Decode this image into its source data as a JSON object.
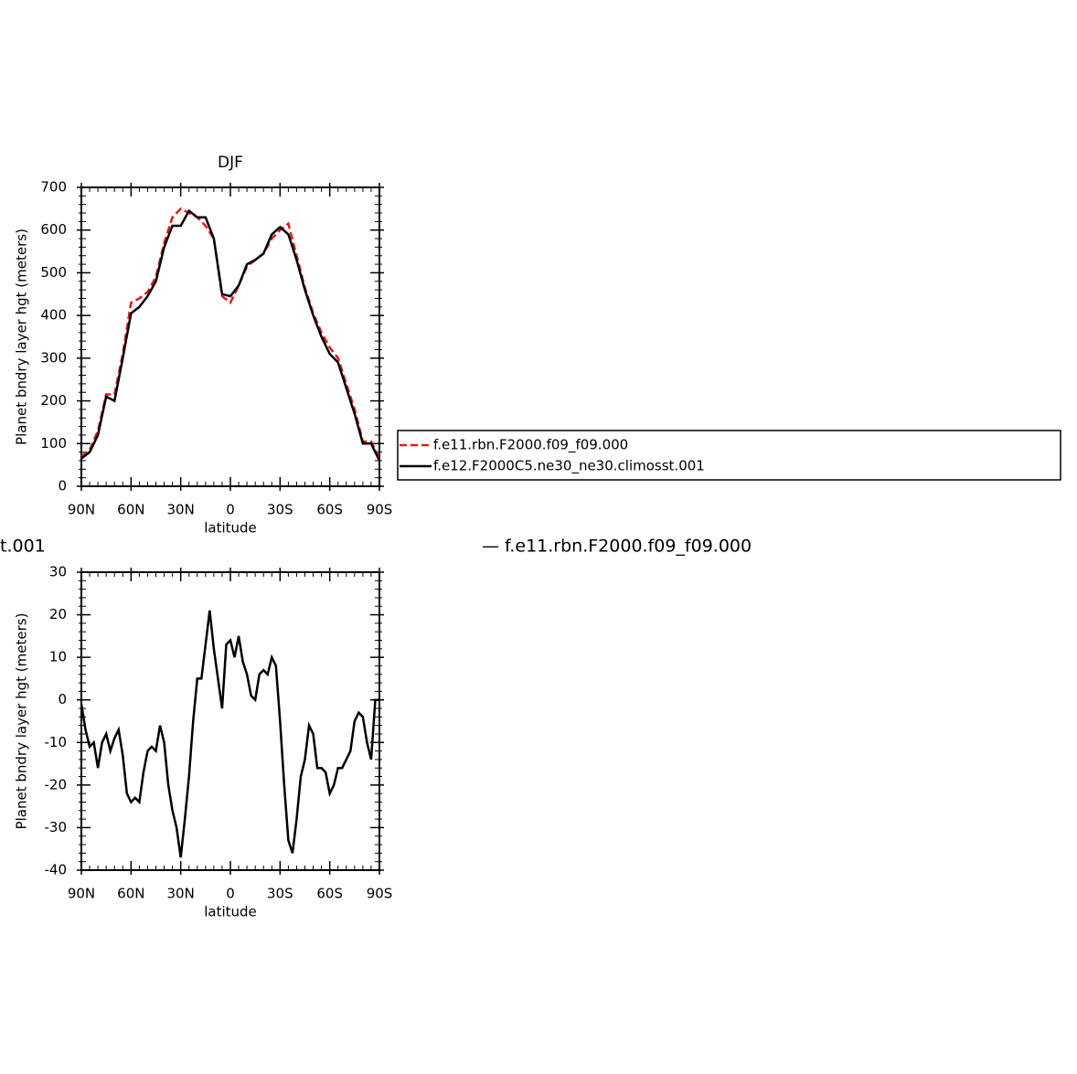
{
  "chart_data": [
    {
      "type": "line",
      "title": "DJF",
      "ylabel": "Planet bndry layer hgt (meters)",
      "xlabel": "latitude",
      "x": [
        90,
        85,
        80,
        75,
        70,
        65,
        60,
        55,
        50,
        45,
        40,
        35,
        30,
        25,
        20,
        15,
        10,
        5,
        0,
        -5,
        -10,
        -15,
        -20,
        -25,
        -30,
        -35,
        -40,
        -45,
        -50,
        -55,
        -60,
        -65,
        -70,
        -75,
        -80,
        -85,
        -90
      ],
      "series": [
        {
          "name": "f.e11.rbn.F2000.f09_f09.000",
          "color": "#e41a1c",
          "linestyle": "dashed",
          "values": [
            70,
            85,
            130,
            215,
            215,
            310,
            430,
            440,
            455,
            490,
            570,
            630,
            650,
            640,
            630,
            610,
            580,
            445,
            430,
            470,
            515,
            530,
            545,
            580,
            600,
            615,
            540,
            465,
            405,
            360,
            325,
            300,
            240,
            180,
            105,
            105,
            65
          ]
        },
        {
          "name": "f.e12.F2000C5.ne30_ne30.climosst.001",
          "color": "#000000",
          "linestyle": "solid",
          "values": [
            65,
            80,
            120,
            210,
            200,
            300,
            405,
            420,
            445,
            480,
            560,
            610,
            610,
            645,
            630,
            630,
            580,
            450,
            445,
            470,
            520,
            530,
            545,
            590,
            607,
            590,
            530,
            460,
            400,
            350,
            310,
            290,
            230,
            170,
            100,
            100,
            60
          ]
        }
      ],
      "xlim": [
        90,
        -90
      ],
      "xticks": [
        {
          "value": 90,
          "label": "90N"
        },
        {
          "value": 60,
          "label": "60N"
        },
        {
          "value": 30,
          "label": "30N"
        },
        0,
        {
          "value": -30,
          "label": "30S"
        },
        {
          "value": -60,
          "label": "60S"
        },
        {
          "value": -90,
          "label": "90S"
        }
      ],
      "ylim": [
        0,
        700
      ],
      "yticks": [
        0,
        100,
        200,
        300,
        400,
        500,
        600,
        700
      ],
      "grid": false
    },
    {
      "type": "line",
      "title": "t.001",
      "annotation": "— f.e11.rbn.F2000.f09_f09.000",
      "ylabel": "Planet bndry layer hgt (meters)",
      "xlabel": "latitude",
      "x": [
        90,
        87.5,
        85,
        82.5,
        80,
        77.5,
        75,
        72.5,
        70,
        67.5,
        65,
        62.5,
        60,
        57.5,
        55,
        52.5,
        50,
        47.5,
        45,
        42.5,
        40,
        37.5,
        35,
        32.5,
        30,
        27.5,
        25,
        22.5,
        20,
        17.5,
        15,
        12.5,
        10,
        7.5,
        5,
        2.5,
        0,
        -2.5,
        -5,
        -7.5,
        -10,
        -12.5,
        -15,
        -17.5,
        -20,
        -22.5,
        -25,
        -27.5,
        -30,
        -32.5,
        -35,
        -37.5,
        -40,
        -42.5,
        -45,
        -47.5,
        -50,
        -52.5,
        -55,
        -57.5,
        -60,
        -62.5,
        -65,
        -67.5,
        -70,
        -72.5,
        -75,
        -77.5,
        -80,
        -82.5,
        -85,
        -87.5,
        -90
      ],
      "series": [
        {
          "color": "#000000",
          "linestyle": "solid",
          "values": [
            -1,
            -7,
            -11,
            -10,
            -16,
            -10,
            -8,
            -12,
            -9,
            -7,
            -13,
            -22,
            -24,
            -23,
            -24,
            -17,
            -12,
            -11,
            -12,
            -6,
            -10,
            -20,
            -26,
            -30,
            -37,
            -28,
            -18,
            -5,
            5,
            5,
            13,
            21,
            12,
            5,
            -2,
            13,
            14,
            10,
            15,
            9,
            6,
            1,
            0,
            6,
            7,
            6,
            10,
            8,
            -5,
            -20,
            -33,
            -36,
            -28,
            -18,
            -14,
            -6,
            -8,
            -16,
            -16,
            -17,
            -22,
            -20,
            -16,
            -16,
            -14,
            -12,
            -5,
            -3,
            -4,
            -10,
            -14,
            0,
            0
          ]
        }
      ],
      "xlim": [
        90,
        -90
      ],
      "xticks": [
        {
          "value": 90,
          "label": "90N"
        },
        {
          "value": 60,
          "label": "60N"
        },
        {
          "value": 30,
          "label": "30N"
        },
        0,
        {
          "value": -30,
          "label": "30S"
        },
        {
          "value": -60,
          "label": "60S"
        },
        {
          "value": -90,
          "label": "90S"
        }
      ],
      "ylim": [
        -40,
        30
      ],
      "yticks": [
        -40,
        -30,
        -20,
        -10,
        0,
        10,
        20,
        30
      ],
      "grid": false
    }
  ]
}
